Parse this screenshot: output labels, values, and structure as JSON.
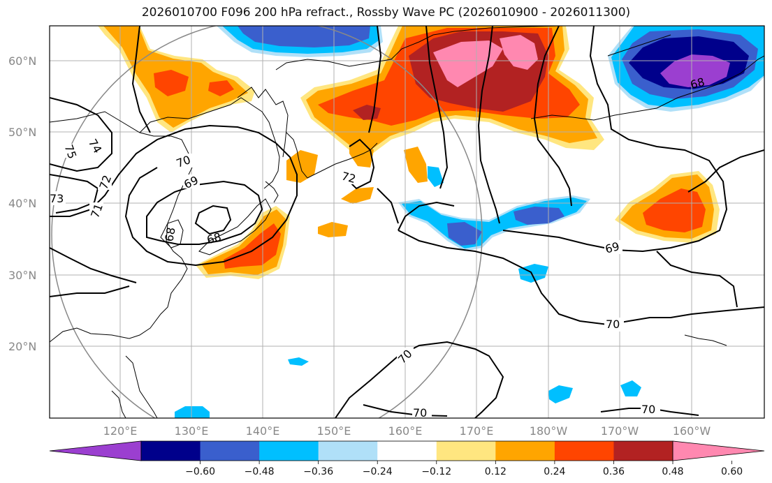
{
  "title": "2026010700 F096 200 hPa refract., Rossby Wave PC (2026010900 - 2026011300)",
  "latitude_labels": [
    "60°N",
    "50°N",
    "40°N",
    "30°N",
    "20°N"
  ],
  "longitude_labels": [
    "120°E",
    "130°E",
    "140°E",
    "150°E",
    "160°E",
    "170°E",
    "180°W",
    "170°W",
    "160°W"
  ],
  "colorbar": {
    "ticks": [
      "−0.60",
      "−0.48",
      "−0.36",
      "−0.24",
      "−0.12",
      "0.12",
      "0.24",
      "0.36",
      "0.48",
      "0.60"
    ],
    "colors": [
      "#9b3fd0",
      "#00008b",
      "#3a5fcd",
      "#00bfff",
      "#b0e0f8",
      "#ffffff",
      "#ffe680",
      "#ffa500",
      "#ff4500",
      "#b22222",
      "#ff88b0"
    ]
  },
  "contour_labels": [
    "75",
    "74",
    "73",
    "72",
    "71",
    "70",
    "69",
    "68",
    "68",
    "68",
    "72",
    "69",
    "70",
    "70",
    "70",
    "70",
    "68"
  ],
  "features": {
    "colors": {
      "pink": "#ff88b0",
      "darkred": "#b22222",
      "red": "#ff4500",
      "orange": "#ffa500",
      "yellow": "#ffe680",
      "lightblue": "#b0e0f8",
      "skyblue": "#00bfff",
      "blue": "#3a5fcd",
      "navy": "#00008b",
      "purple": "#9b3fd0"
    }
  }
}
